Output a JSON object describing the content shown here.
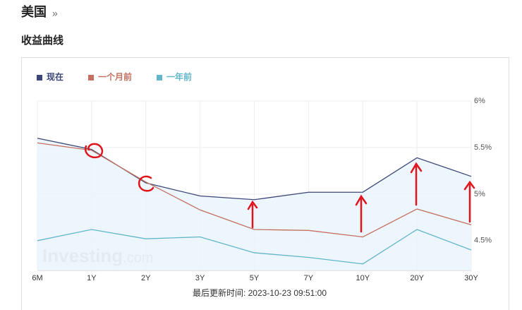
{
  "page_title": "美国",
  "page_title_link": "»",
  "section_title": "收益曲线",
  "chart_data": {
    "type": "line",
    "categories": [
      "6M",
      "1Y",
      "2Y",
      "3Y",
      "5Y",
      "7Y",
      "10Y",
      "20Y",
      "30Y"
    ],
    "series": [
      {
        "name": "现在",
        "color": "#3b4778",
        "values": [
          5.6,
          5.48,
          5.12,
          4.98,
          4.94,
          5.02,
          5.02,
          5.39,
          5.19
        ]
      },
      {
        "name": "一个月前",
        "color": "#c46f5f",
        "values": [
          5.55,
          5.47,
          5.13,
          4.83,
          4.62,
          4.61,
          4.54,
          4.84,
          4.67
        ]
      },
      {
        "name": "一年前",
        "color": "#62b6c9",
        "values": [
          4.5,
          4.62,
          4.52,
          4.54,
          4.37,
          4.32,
          4.25,
          4.62,
          4.4
        ]
      }
    ],
    "ylim": [
      4.18,
      6
    ],
    "yticks": [
      {
        "value": 4.5,
        "label": "4.5%"
      },
      {
        "value": 5,
        "label": "5%"
      },
      {
        "value": 5.5,
        "label": "5.5%"
      },
      {
        "value": 6,
        "label": "6%"
      }
    ],
    "grid": true,
    "legend": "top-left",
    "area_fill": "#eaf4fc",
    "watermark": "Investing",
    "watermark_suffix": ".com",
    "footer": "最后更新时间: 2023-10-23 09:51:00"
  }
}
